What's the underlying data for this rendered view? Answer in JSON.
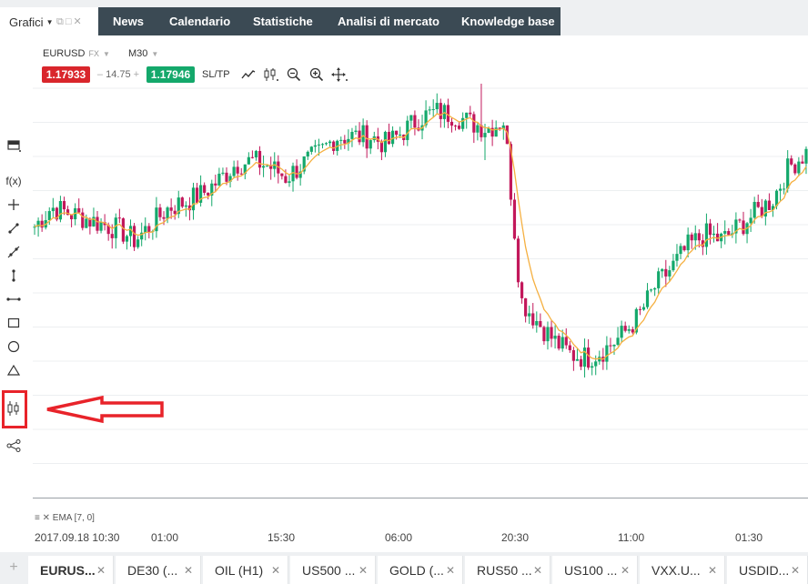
{
  "top_tab": {
    "label": "Grafici"
  },
  "nav": [
    "News",
    "Calendario",
    "Statistiche",
    "Analisi di mercato",
    "Knowledge base"
  ],
  "chart_header": {
    "symbol": "EURUSD",
    "market": "FX",
    "timeframe": "M30",
    "sell_price": "1.17933",
    "spread": "14.75",
    "buy_price": "1.17946",
    "sltp_label": "SL/TP"
  },
  "toolbar_icons": [
    "line-chart-icon",
    "candlestick-settings-icon",
    "zoom-out-icon",
    "zoom-in-icon",
    "crosshair-icon"
  ],
  "left_tools": [
    "panel-icon",
    "function-icon",
    "crosshair-tool-icon",
    "trendline-icon",
    "ray-icon",
    "vertical-line-icon",
    "horizontal-line-icon",
    "rectangle-icon",
    "circle-icon",
    "triangle-icon",
    "candlestick-icon",
    "share-icon"
  ],
  "left_tool_labels": {
    "function": "f(x)"
  },
  "indicator_label": "EMA [7, 0]",
  "xaxis_labels": [
    "2017.09.18 10:30",
    "01:00",
    "15:30",
    "06:00",
    "20:30",
    "11:00",
    "01:30"
  ],
  "bottom_tabs": [
    {
      "label": "EURUS...",
      "active": true
    },
    {
      "label": "DE30 (...",
      "active": false
    },
    {
      "label": "OIL (H1)",
      "active": false
    },
    {
      "label": "US500 ...",
      "active": false
    },
    {
      "label": "GOLD (...",
      "active": false
    },
    {
      "label": "RUS50 ...",
      "active": false
    },
    {
      "label": "US100 ...",
      "active": false
    },
    {
      "label": "VXX.U...",
      "active": false
    },
    {
      "label": "USDID...",
      "active": false
    }
  ],
  "colors": {
    "bull": "#14a86b",
    "bear": "#c2185b",
    "ema": "#f5b041",
    "nav_bg": "#3b4a54",
    "sell": "#d9262c",
    "buy": "#14a86b",
    "highlight": "#e8232a"
  },
  "chart_data": {
    "type": "candlestick",
    "symbol": "EURUSD",
    "timeframe": "M30",
    "indicator": "EMA [7, 0]",
    "x_labels": [
      "2017.09.18 10:30",
      "01:00",
      "15:30",
      "06:00",
      "20:30",
      "11:00",
      "01:30"
    ],
    "close_path": [
      1.1935,
      1.1942,
      1.194,
      1.1938,
      1.1936,
      1.1934,
      1.193,
      1.1936,
      1.1942,
      1.1944,
      1.1947,
      1.1952,
      1.1958,
      1.1959,
      1.1957,
      1.1953,
      1.1958,
      1.1962,
      1.1968,
      1.1968,
      1.1968,
      1.1965,
      1.197,
      1.1975,
      1.1977,
      1.1976,
      1.1973,
      1.1971,
      1.1974,
      1.1908,
      1.19,
      1.1893,
      1.1888,
      1.1887,
      1.189,
      1.1895,
      1.1902,
      1.1913,
      1.192,
      1.1928,
      1.1932,
      1.193,
      1.1935,
      1.194,
      1.1945,
      1.1957,
      1.1962
    ]
  }
}
